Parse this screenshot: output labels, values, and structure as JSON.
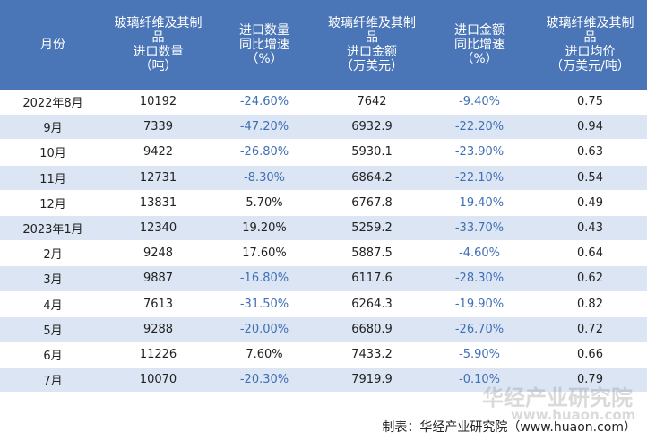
{
  "table": {
    "header": [
      "月份",
      "玻璃纤维及其制\n品\n进口数量\n（吨）",
      "进口数量\n同比增速\n（%）",
      "玻璃纤维及其制\n品\n进口金额\n（万美元）",
      "进口金额\n同比增速\n（%）",
      "玻璃纤维及其制\n品\n进口均价\n（万美元/吨）"
    ],
    "rows": [
      [
        "2022年8月",
        "10192",
        "-24.60%",
        "7642",
        "-9.40%",
        "0.75"
      ],
      [
        "9月",
        "7339",
        "-47.20%",
        "6932.9",
        "-22.20%",
        "0.94"
      ],
      [
        "10月",
        "9422",
        "-26.80%",
        "5930.1",
        "-23.90%",
        "0.63"
      ],
      [
        "11月",
        "12731",
        "-8.30%",
        "6864.2",
        "-22.10%",
        "0.54"
      ],
      [
        "12月",
        "13831",
        "5.70%",
        "6767.8",
        "-19.40%",
        "0.49"
      ],
      [
        "2023年1月",
        "12340",
        "19.20%",
        "5259.2",
        "-33.70%",
        "0.43"
      ],
      [
        "2月",
        "9248",
        "17.60%",
        "5887.5",
        "-4.60%",
        "0.64"
      ],
      [
        "3月",
        "9887",
        "-16.80%",
        "6117.6",
        "-28.30%",
        "0.62"
      ],
      [
        "4月",
        "7613",
        "-31.50%",
        "6264.3",
        "-19.90%",
        "0.82"
      ],
      [
        "5月",
        "9288",
        "-20.00%",
        "6680.9",
        "-26.70%",
        "0.72"
      ],
      [
        "6月",
        "11226",
        "7.60%",
        "7433.2",
        "-5.90%",
        "0.66"
      ],
      [
        "7月",
        "10070",
        "-20.30%",
        "7919.9",
        "-0.10%",
        "0.79"
      ]
    ]
  },
  "footer": "制表：华经产业研究院（www.huaon.com）",
  "watermark": {
    "name": "华经产业研究院",
    "url": "www.huaon.com"
  }
}
